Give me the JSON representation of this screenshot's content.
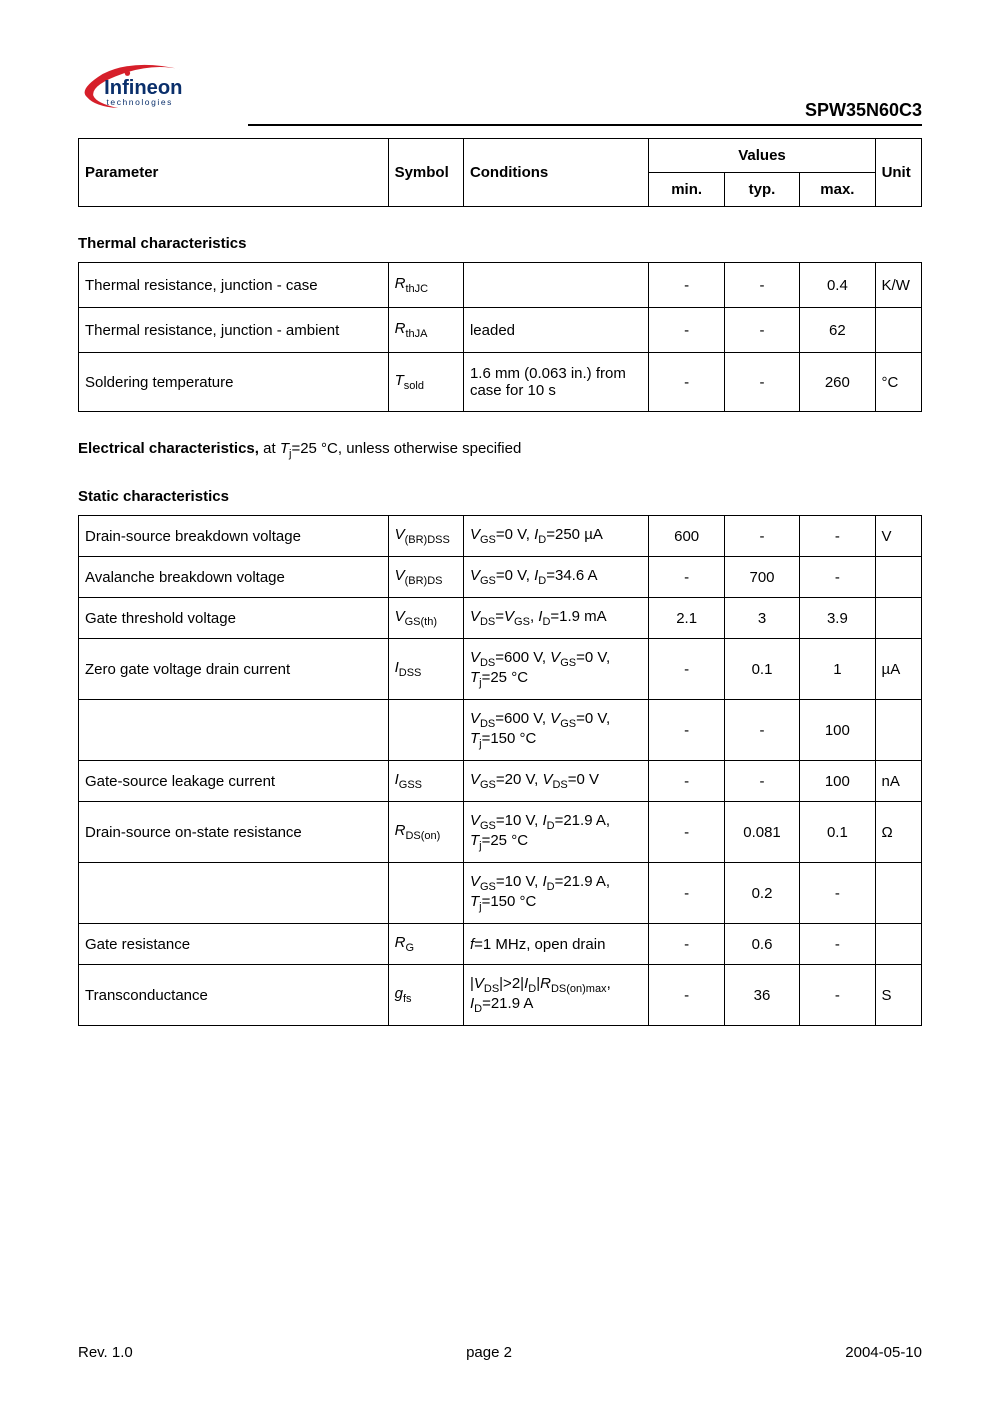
{
  "partNumber": "SPW35N60C3",
  "logo": {
    "brand": "Infineon",
    "sub": "technologies",
    "colors": {
      "swoosh": "#d61f2a",
      "dot": "#d61f2a",
      "text": "#0a2f6b",
      "sub": "#0a2f6b"
    }
  },
  "headerTable": {
    "cols": [
      "Parameter",
      "Symbol",
      "Conditions",
      "Values",
      "Unit"
    ],
    "valCols": [
      "min.",
      "typ.",
      "max."
    ]
  },
  "thermal": {
    "title": "Thermal characteristics",
    "rows": [
      {
        "param": "Thermal resistance, junction - case",
        "symbol": {
          "base": "R",
          "sub": "thJC"
        },
        "cond": "",
        "min": "-",
        "typ": "-",
        "max": "0.4",
        "unit": "K/W"
      },
      {
        "param": "Thermal resistance, junction - ambient",
        "symbol": {
          "base": "R",
          "sub": "thJA"
        },
        "cond": "leaded",
        "min": "-",
        "typ": "-",
        "max": "62",
        "unit": ""
      },
      {
        "param": "Soldering temperature",
        "symbol": {
          "base": "T",
          "sub": "sold"
        },
        "cond": "1.6 mm (0.063 in.) from case for 10 s",
        "min": "-",
        "typ": "-",
        "max": "260",
        "unit": "°C"
      }
    ]
  },
  "elecTitle": {
    "bold": "Electrical characteristics,",
    "rest": " at ",
    "tj": "T",
    "tjsub": "j",
    "tail": "=25 °C, unless otherwise specified"
  },
  "static": {
    "title": "Static characteristics",
    "rows": [
      {
        "param": "Drain-source breakdown voltage",
        "symbol": {
          "base": "V",
          "sub": "(BR)DSS"
        },
        "condHtml": "<span class=\"symbol-italic\">V</span><span class=\"sub\">GS</span>=0 V, <span class=\"symbol-italic\">I</span><span class=\"sub\">D</span>=250 µA",
        "min": "600",
        "typ": "-",
        "max": "-",
        "unit": "V"
      },
      {
        "param": "Avalanche breakdown voltage",
        "symbol": {
          "base": "V",
          "sub": "(BR)DS"
        },
        "condHtml": "<span class=\"symbol-italic\">V</span><span class=\"sub\">GS</span>=0 V, <span class=\"symbol-italic\">I</span><span class=\"sub\">D</span>=34.6 A",
        "min": "-",
        "typ": "700",
        "max": "-",
        "unit": ""
      },
      {
        "param": "Gate threshold voltage",
        "symbol": {
          "base": "V",
          "sub": "GS(th)"
        },
        "condHtml": "<span class=\"symbol-italic\">V</span><span class=\"sub\">DS</span>=<span class=\"symbol-italic\">V</span><span class=\"sub\">GS</span>, <span class=\"symbol-italic\">I</span><span class=\"sub\">D</span>=1.9 mA",
        "min": "2.1",
        "typ": "3",
        "max": "3.9",
        "unit": ""
      },
      {
        "param": "Zero gate voltage drain current",
        "symbol": {
          "base": "I",
          "sub": "DSS"
        },
        "condHtml": "<span class=\"symbol-italic\">V</span><span class=\"sub\">DS</span>=600 V, <span class=\"symbol-italic\">V</span><span class=\"sub\">GS</span>=0 V, <span class=\"symbol-italic\">T</span><span class=\"sub\">j</span>=25 °C",
        "min": "-",
        "typ": "0.1",
        "max": "1",
        "unit": "µA"
      },
      {
        "param": "",
        "symbol": {
          "base": "",
          "sub": ""
        },
        "condHtml": "<span class=\"symbol-italic\">V</span><span class=\"sub\">DS</span>=600 V, <span class=\"symbol-italic\">V</span><span class=\"sub\">GS</span>=0 V, <span class=\"symbol-italic\">T</span><span class=\"sub\">j</span>=150 °C",
        "min": "-",
        "typ": "-",
        "max": "100",
        "unit": ""
      },
      {
        "param": "Gate-source leakage current",
        "symbol": {
          "base": "I",
          "sub": "GSS"
        },
        "condHtml": "<span class=\"symbol-italic\">V</span><span class=\"sub\">GS</span>=20 V, <span class=\"symbol-italic\">V</span><span class=\"sub\">DS</span>=0 V",
        "min": "-",
        "typ": "-",
        "max": "100",
        "unit": "nA"
      },
      {
        "param": "Drain-source on-state resistance",
        "symbol": {
          "base": "R",
          "sub": "DS(on)"
        },
        "condHtml": "<span class=\"symbol-italic\">V</span><span class=\"sub\">GS</span>=10 V, <span class=\"symbol-italic\">I</span><span class=\"sub\">D</span>=21.9 A, <span class=\"symbol-italic\">T</span><span class=\"sub\">j</span>=25 °C",
        "min": "-",
        "typ": "0.081",
        "max": "0.1",
        "unit": "Ω"
      },
      {
        "param": "",
        "symbol": {
          "base": "",
          "sub": ""
        },
        "condHtml": "<span class=\"symbol-italic\">V</span><span class=\"sub\">GS</span>=10 V, <span class=\"symbol-italic\">I</span><span class=\"sub\">D</span>=21.9 A, <span class=\"symbol-italic\">T</span><span class=\"sub\">j</span>=150 °C",
        "min": "-",
        "typ": "0.2",
        "max": "-",
        "unit": ""
      },
      {
        "param": "Gate resistance",
        "symbol": {
          "base": "R",
          "sub": "G"
        },
        "condHtml": "<span class=\"symbol-italic\">f</span>=1 MHz, open drain",
        "min": "-",
        "typ": "0.6",
        "max": "-",
        "unit": ""
      },
      {
        "param": "Transconductance",
        "symbol": {
          "base": "g",
          "sub": "fs"
        },
        "condHtml": "|<span class=\"symbol-italic\">V</span><span class=\"sub\">DS</span>|&gt;2|<span class=\"symbol-italic\">I</span><span class=\"sub\">D</span>|<span class=\"symbol-italic\">R</span><span class=\"sub\">DS(on)max</span>, <span class=\"symbol-italic\">I</span><span class=\"sub\">D</span>=21.9 A",
        "min": "-",
        "typ": "36",
        "max": "-",
        "unit": "S"
      }
    ]
  },
  "footer": {
    "rev": "Rev. 1.0",
    "page": "page 2",
    "date": "2004-05-10"
  },
  "style": {
    "pageWidth": 1000,
    "pageHeight": 1416,
    "font": "Arial, Helvetica, sans-serif",
    "bodyFontSize": 15,
    "borderColor": "#000000",
    "background": "#ffffff"
  }
}
